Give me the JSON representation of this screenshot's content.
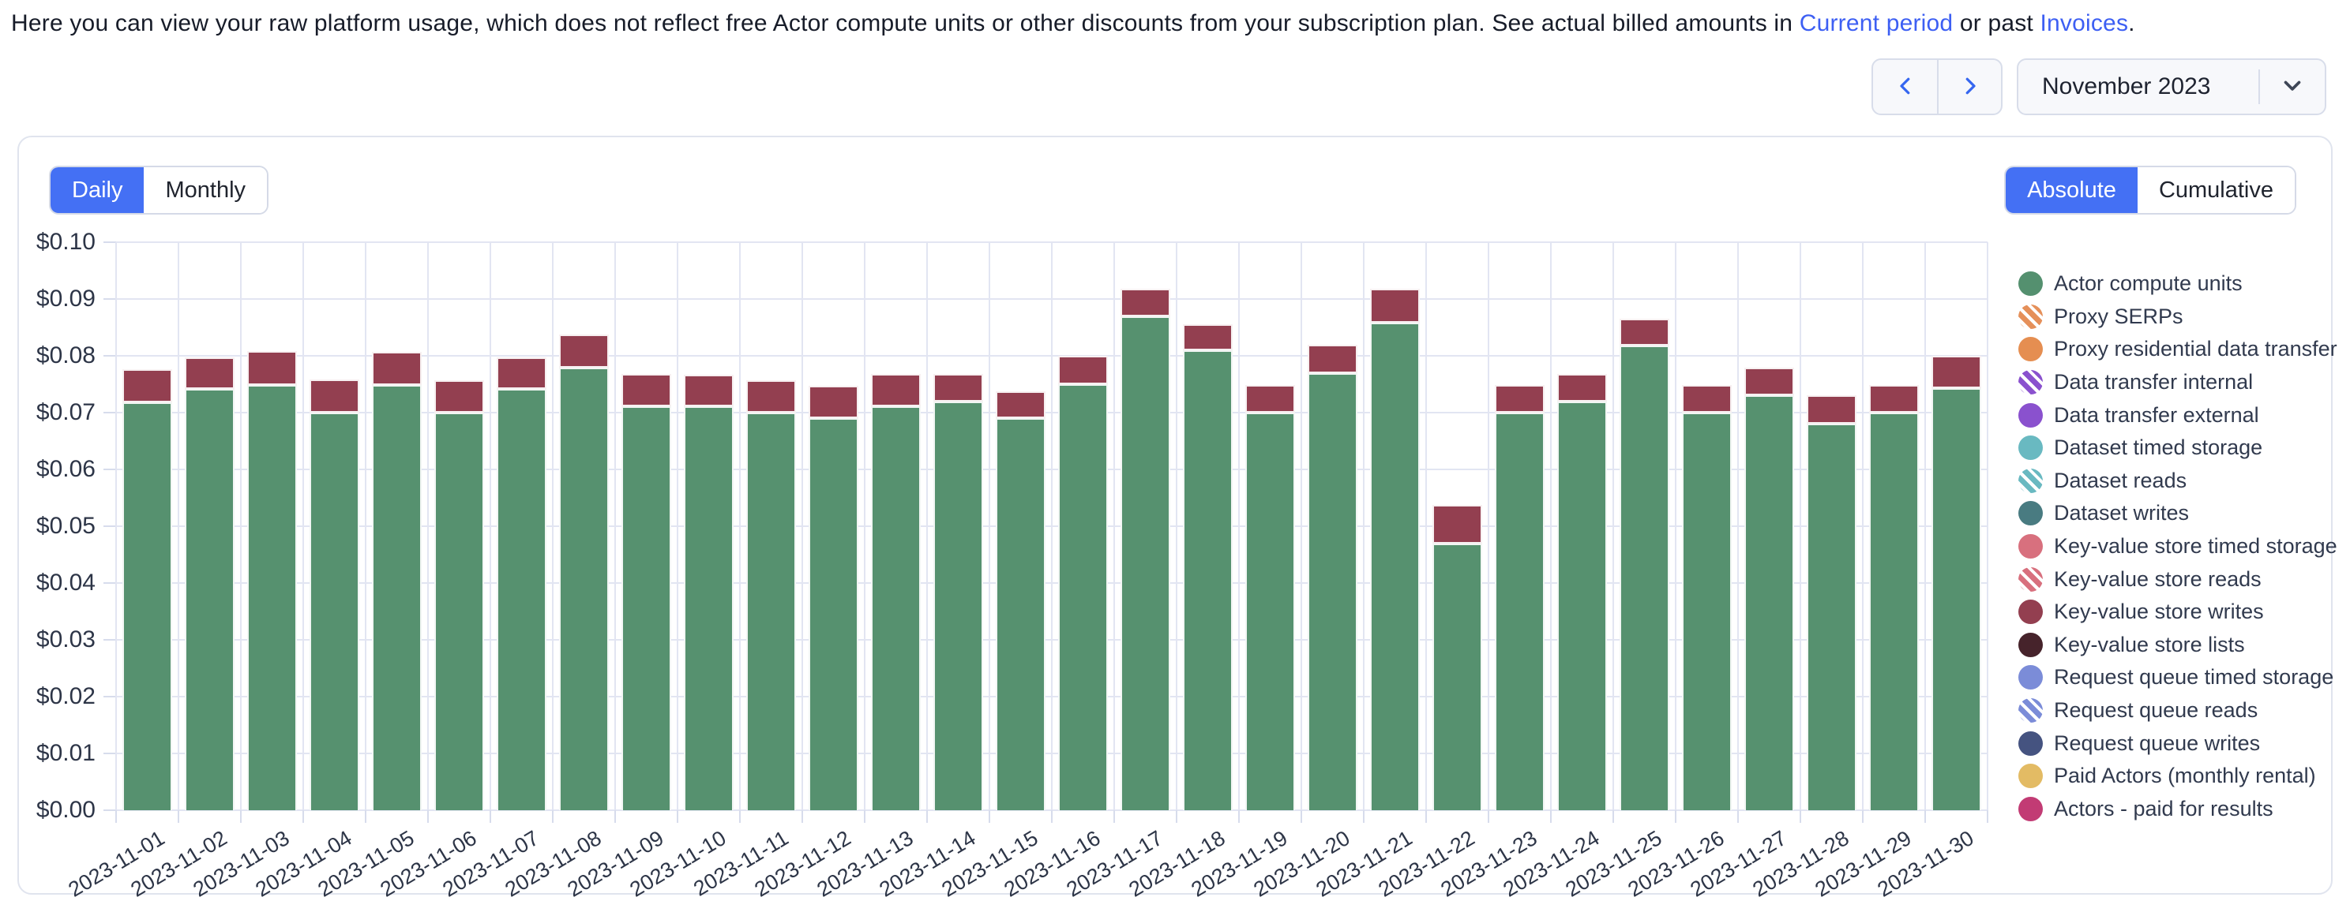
{
  "header": {
    "description_prefix": "Here you can view your raw platform usage, which does not reflect free Actor compute units or other discounts from your subscription plan. See actual billed amounts in ",
    "link_current_period": "Current period",
    "description_middle": " or past ",
    "link_invoices": "Invoices",
    "description_suffix": "."
  },
  "period_nav": {
    "selected_month": "November 2023",
    "prev_icon": "chevron-left",
    "next_icon": "chevron-right"
  },
  "toggles": {
    "granularity": [
      {
        "label": "Daily",
        "selected": true
      },
      {
        "label": "Monthly",
        "selected": false
      }
    ],
    "mode": [
      {
        "label": "Absolute",
        "selected": true
      },
      {
        "label": "Cumulative",
        "selected": false
      }
    ]
  },
  "colors": {
    "accent_blue": "#4470f4",
    "link_blue": "#3d5ff3",
    "gridline": "#e2e5f2",
    "axis_text": "#2d3547",
    "bar_green": "#56916f",
    "bar_red": "#933f50"
  },
  "chart_data": {
    "type": "bar",
    "stacked": true,
    "ylim": [
      0,
      0.1
    ],
    "ytick_step": 0.01,
    "ytick_prefix": "$",
    "grid": true,
    "legend_position": "right",
    "categories": [
      "2023-11-01",
      "2023-11-02",
      "2023-11-03",
      "2023-11-04",
      "2023-11-05",
      "2023-11-06",
      "2023-11-07",
      "2023-11-08",
      "2023-11-09",
      "2023-11-10",
      "2023-11-11",
      "2023-11-12",
      "2023-11-13",
      "2023-11-14",
      "2023-11-15",
      "2023-11-16",
      "2023-11-17",
      "2023-11-18",
      "2023-11-19",
      "2023-11-20",
      "2023-11-21",
      "2023-11-22",
      "2023-11-23",
      "2023-11-24",
      "2023-11-25",
      "2023-11-26",
      "2023-11-27",
      "2023-11-28",
      "2023-11-29",
      "2023-11-30"
    ],
    "series": [
      {
        "name": "Actor compute units",
        "color": "#56916f",
        "values": [
          0.0718,
          0.0741,
          0.0749,
          0.07,
          0.0749,
          0.07,
          0.0741,
          0.0779,
          0.0711,
          0.0711,
          0.07,
          0.069,
          0.0711,
          0.072,
          0.069,
          0.075,
          0.087,
          0.081,
          0.07,
          0.0769,
          0.0859,
          0.047,
          0.07,
          0.072,
          0.0818,
          0.07,
          0.073,
          0.068,
          0.07,
          0.0743
        ]
      },
      {
        "name": "Key-value store writes",
        "color": "#933f50",
        "values": [
          0.0058,
          0.0056,
          0.006,
          0.0058,
          0.0058,
          0.0057,
          0.0056,
          0.0059,
          0.0057,
          0.0056,
          0.0057,
          0.0057,
          0.0057,
          0.0048,
          0.0048,
          0.005,
          0.0048,
          0.0045,
          0.0049,
          0.0051,
          0.0059,
          0.0067,
          0.0049,
          0.0048,
          0.0047,
          0.0049,
          0.0049,
          0.005,
          0.0049,
          0.0057
        ]
      }
    ],
    "legend": [
      {
        "label": "Actor compute units",
        "color": "#54906f",
        "striped": false
      },
      {
        "label": "Proxy SERPs",
        "color": "#e5905a",
        "striped": true
      },
      {
        "label": "Proxy residential data transfer",
        "color": "#e58e51",
        "striped": false
      },
      {
        "label": "Data transfer internal",
        "color": "#8a51ce",
        "striped": true
      },
      {
        "label": "Data transfer external",
        "color": "#8a51ce",
        "striped": false
      },
      {
        "label": "Dataset timed storage",
        "color": "#69b9c1",
        "striped": false
      },
      {
        "label": "Dataset reads",
        "color": "#69b9c1",
        "striped": true
      },
      {
        "label": "Dataset writes",
        "color": "#497b81",
        "striped": false
      },
      {
        "label": "Key-value store timed storage",
        "color": "#d8707e",
        "striped": false
      },
      {
        "label": "Key-value store reads",
        "color": "#d8707e",
        "striped": true
      },
      {
        "label": "Key-value store writes",
        "color": "#933f50",
        "striped": false
      },
      {
        "label": "Key-value store lists",
        "color": "#46232b",
        "striped": false
      },
      {
        "label": "Request queue timed storage",
        "color": "#7b8cd8",
        "striped": false
      },
      {
        "label": "Request queue reads",
        "color": "#7b8cd8",
        "striped": true
      },
      {
        "label": "Request queue writes",
        "color": "#455380",
        "striped": false
      },
      {
        "label": "Paid Actors (monthly rental)",
        "color": "#e3bb64",
        "striped": false
      },
      {
        "label": "Actors - paid for results",
        "color": "#c23b74",
        "striped": false
      }
    ]
  }
}
